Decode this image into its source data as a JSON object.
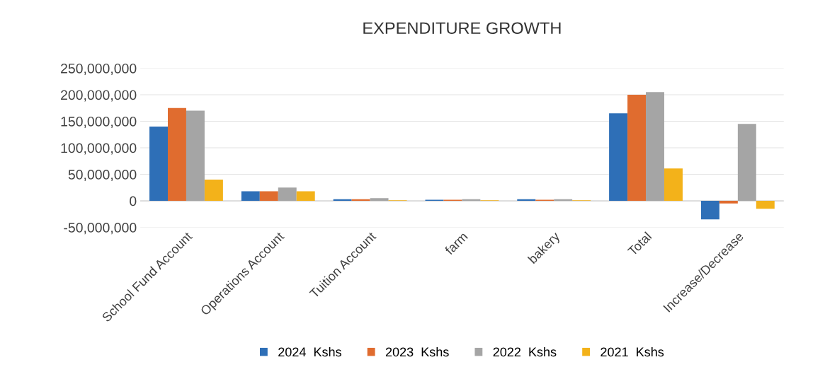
{
  "chart_data": {
    "type": "bar",
    "title": "EXPENDITURE GROWTH",
    "categories": [
      "School Fund Account",
      "Operations Account",
      "Tuition Account",
      "farm",
      "bakery",
      "Total",
      "Increase/Decrease"
    ],
    "series": [
      {
        "name": "2024  Kshs",
        "color": "#2e6fb7",
        "values": [
          140000000,
          18000000,
          3000000,
          2000000,
          3000000,
          165000000,
          -35000000
        ]
      },
      {
        "name": "2023  Kshs",
        "color": "#e06c2f",
        "values": [
          175000000,
          18000000,
          3000000,
          2000000,
          2000000,
          200000000,
          -5000000
        ]
      },
      {
        "name": "2022  Kshs",
        "color": "#a5a5a5",
        "values": [
          170000000,
          25000000,
          5000000,
          3000000,
          3000000,
          205000000,
          145000000
        ]
      },
      {
        "name": "2021  Kshs",
        "color": "#f3b21a",
        "values": [
          40000000,
          18000000,
          1000000,
          1000000,
          1000000,
          61000000,
          -15000000
        ]
      }
    ],
    "ylim": [
      -50000000,
      250000000
    ],
    "yticks": [
      {
        "value": -50000000,
        "label": "-50,000,000"
      },
      0,
      {
        "value": 50000000,
        "label": "50,000,000"
      },
      {
        "value": 100000000,
        "label": "100,000,000"
      },
      {
        "value": 150000000,
        "label": "150,000,000"
      },
      {
        "value": 200000000,
        "label": "200,000,000"
      },
      {
        "value": 250000000,
        "label": "250,000,000"
      }
    ],
    "grid": "y",
    "legend": "bottom"
  }
}
